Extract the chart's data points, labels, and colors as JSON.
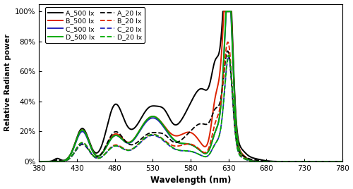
{
  "xlabel": "Wavelength (nm)",
  "ylabel": "Relative Radiant power",
  "xlim": [
    380,
    780
  ],
  "ylim": [
    0,
    1.05
  ],
  "xticks": [
    380,
    430,
    480,
    530,
    580,
    630,
    680,
    730,
    780
  ],
  "yticks": [
    0.0,
    0.2,
    0.4,
    0.6,
    0.8,
    1.0
  ],
  "ytick_labels": [
    "0%",
    "20%",
    "40%",
    "60%",
    "80%",
    "100%"
  ],
  "colors": {
    "A": "#000000",
    "B": "#dd2200",
    "C": "#2222bb",
    "D": "#00aa00"
  },
  "background_color": "#ffffff",
  "lw_solid": 1.4,
  "lw_dashed": 1.3
}
